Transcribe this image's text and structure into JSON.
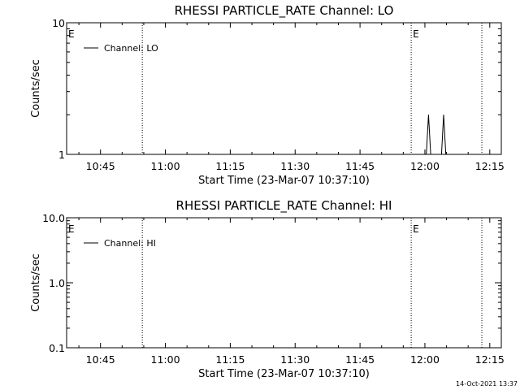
{
  "footer": "14-Oct-2021 13:37",
  "chart_data": [
    {
      "type": "line",
      "title": "RHESSI PARTICLE_RATE Channel: LO",
      "xlabel": "Start Time (23-Mar-07 10:37:10)",
      "ylabel": "Counts/sec",
      "yscale": "log",
      "ylim": [
        1,
        10
      ],
      "y_tick_values": [
        1,
        10
      ],
      "y_tick_labels": [
        "1",
        "10"
      ],
      "x_start": "10:37:10",
      "x_end": "12:17:40",
      "x_tick_values": [
        "10:45",
        "11:00",
        "11:15",
        "11:30",
        "11:45",
        "12:00",
        "12:15"
      ],
      "x_tick_labels": [
        "10:45",
        "11:00",
        "11:15",
        "11:30",
        "11:45",
        "12:00",
        "12:15"
      ],
      "vertical_lines": [
        "10:54:40",
        "11:56:50",
        "12:13:10"
      ],
      "event_markers": [
        {
          "label": "E",
          "time": "10:37:10"
        },
        {
          "label": "E",
          "time": "11:56:50"
        }
      ],
      "legend": {
        "placement": "top-left",
        "entries": [
          "Channel: LO"
        ]
      },
      "series": [
        {
          "name": "Channel: LO",
          "points": [
            [
              "10:37:10",
              1
            ],
            [
              "12:00:20",
              1
            ],
            [
              "12:00:50",
              2
            ],
            [
              "12:01:20",
              1
            ],
            [
              "12:03:50",
              1
            ],
            [
              "12:04:20",
              2
            ],
            [
              "12:04:50",
              1
            ],
            [
              "12:06:10",
              1
            ]
          ]
        }
      ]
    },
    {
      "type": "line",
      "title": "RHESSI PARTICLE_RATE Channel: HI",
      "xlabel": "Start Time (23-Mar-07 10:37:10)",
      "ylabel": "Counts/sec",
      "yscale": "log",
      "ylim": [
        0.1,
        10
      ],
      "y_tick_values": [
        0.1,
        1,
        10
      ],
      "y_tick_labels": [
        "0.1",
        "1.0",
        "10.0"
      ],
      "x_start": "10:37:10",
      "x_end": "12:17:40",
      "x_tick_values": [
        "10:45",
        "11:00",
        "11:15",
        "11:30",
        "11:45",
        "12:00",
        "12:15"
      ],
      "x_tick_labels": [
        "10:45",
        "11:00",
        "11:15",
        "11:30",
        "11:45",
        "12:00",
        "12:15"
      ],
      "vertical_lines": [
        "10:54:40",
        "11:56:50",
        "12:13:10"
      ],
      "event_markers": [
        {
          "label": "E",
          "time": "10:37:10"
        },
        {
          "label": "E",
          "time": "11:56:50"
        }
      ],
      "legend": {
        "placement": "top-left",
        "entries": [
          "Channel: HI"
        ]
      },
      "series": [
        {
          "name": "Channel: HI",
          "points": []
        }
      ]
    }
  ]
}
